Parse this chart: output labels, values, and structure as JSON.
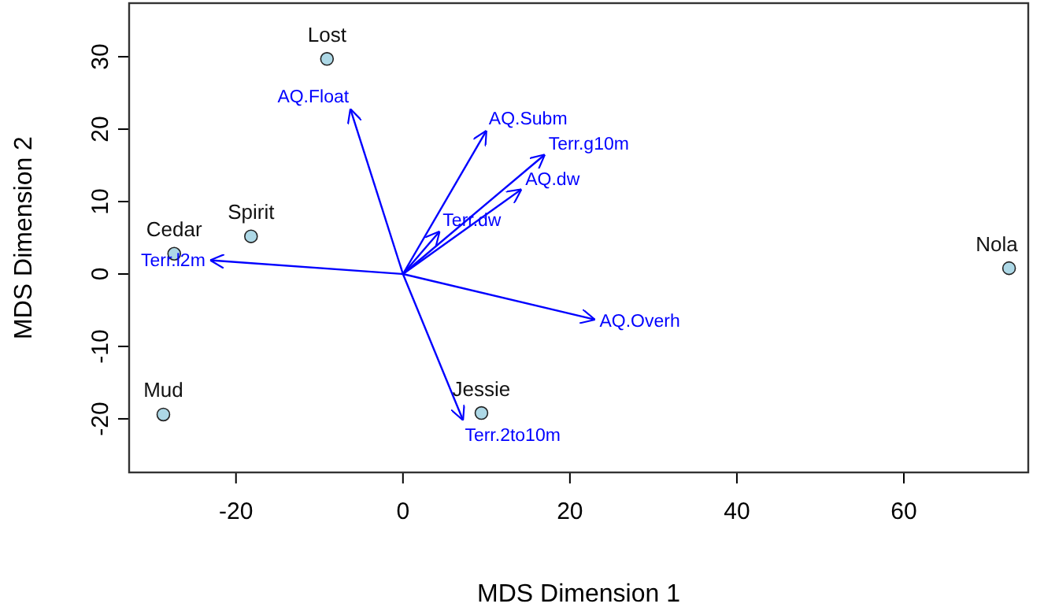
{
  "chart_data": {
    "type": "scatter",
    "xlabel": "MDS Dimension 1",
    "ylabel": "MDS Dimension 2",
    "xlim": [
      -32.8,
      74.9
    ],
    "ylim": [
      -27.4,
      37.4
    ],
    "xticks": [
      -20,
      0,
      20,
      40,
      60
    ],
    "yticks": [
      -20,
      -10,
      0,
      10,
      20,
      30
    ],
    "grid": false,
    "legend": false,
    "marker": "circle",
    "series": [
      {
        "name": "Lost",
        "color": "#add8e6",
        "x": [
          -9.1
        ],
        "values": [
          29.7
        ]
      },
      {
        "name": "Spirit",
        "color": "#add8e6",
        "x": [
          -18.2
        ],
        "values": [
          5.2
        ]
      },
      {
        "name": "Cedar",
        "color": "#add8e6",
        "x": [
          -27.4
        ],
        "values": [
          2.8
        ]
      },
      {
        "name": "Mud",
        "color": "#add8e6",
        "x": [
          -28.7
        ],
        "values": [
          -19.4
        ]
      },
      {
        "name": "Jessie",
        "color": "#add8e6",
        "x": [
          9.4
        ],
        "values": [
          -19.2
        ]
      },
      {
        "name": "Nola",
        "color": "#add8e6",
        "x": [
          72.6
        ],
        "values": [
          0.8
        ]
      },
      {
        "name": "AQ.Float",
        "type": "line",
        "marker": "none",
        "color": "#0000ff",
        "x": [
          0,
          -6.3
        ],
        "values": [
          0,
          22.8
        ]
      },
      {
        "name": "AQ.Subm",
        "type": "line",
        "marker": "none",
        "color": "#0000ff",
        "x": [
          0,
          10.0
        ],
        "values": [
          0,
          19.8
        ]
      },
      {
        "name": "Terr.g10m",
        "type": "line",
        "marker": "none",
        "color": "#0000ff",
        "x": [
          0,
          17.0
        ],
        "values": [
          0,
          16.5
        ]
      },
      {
        "name": "AQ.dw",
        "type": "line",
        "marker": "none",
        "color": "#0000ff",
        "x": [
          0,
          14.2
        ],
        "values": [
          0,
          11.7
        ]
      },
      {
        "name": "Terr.dw",
        "type": "line",
        "marker": "none",
        "color": "#0000ff",
        "x": [
          0,
          4.4
        ],
        "values": [
          0,
          5.9
        ]
      },
      {
        "name": "Terr.l2m",
        "type": "line",
        "marker": "none",
        "color": "#0000ff",
        "x": [
          0,
          -23.1
        ],
        "values": [
          0,
          1.9
        ]
      },
      {
        "name": "AQ.Overh",
        "type": "line",
        "marker": "none",
        "color": "#0000ff",
        "x": [
          0,
          23.0
        ],
        "values": [
          0,
          -6.3
        ]
      },
      {
        "name": "Terr.2to10m",
        "type": "line",
        "marker": "none",
        "color": "#0000ff",
        "x": [
          0,
          7.2
        ],
        "values": [
          0,
          -20.2
        ]
      }
    ]
  }
}
